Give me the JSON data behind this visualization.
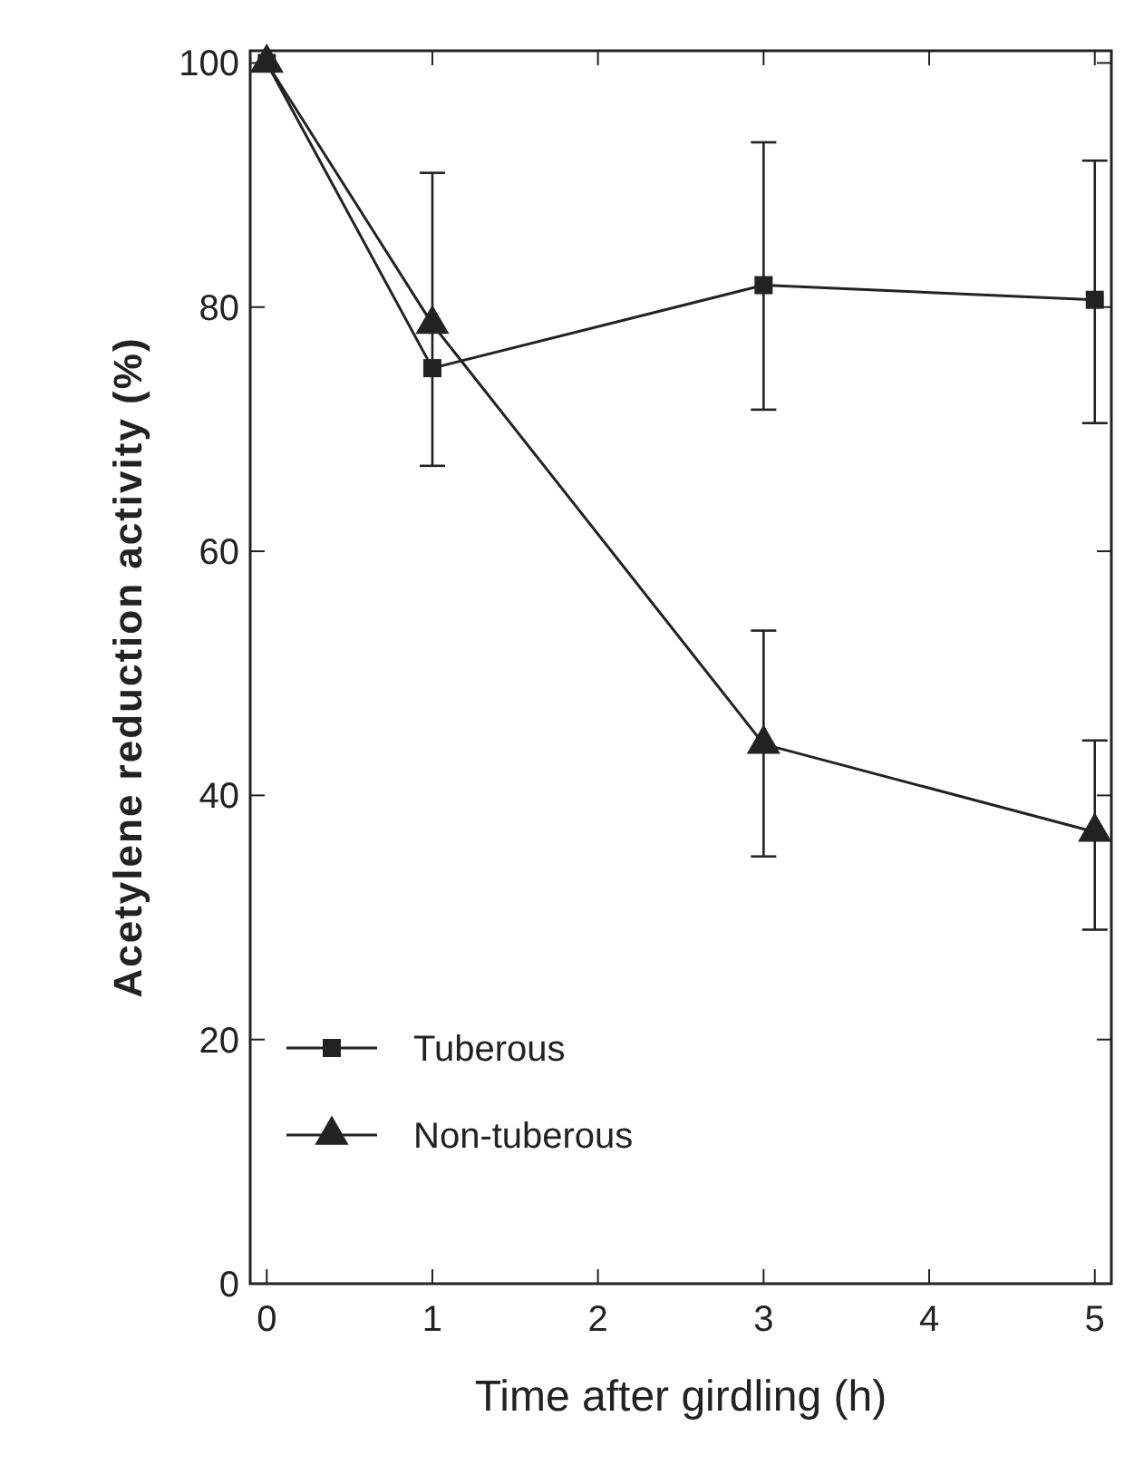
{
  "chart_data": {
    "type": "line",
    "xlabel": "Time after girdling (h)",
    "ylabel": "Acetylene reduction activity (%)",
    "x": [
      0,
      1,
      3,
      5
    ],
    "xlim": [
      -0.1,
      5.1
    ],
    "ylim": [
      0,
      101
    ],
    "xticks": [
      0,
      1,
      2,
      3,
      4,
      5
    ],
    "yticks": [
      0,
      20,
      40,
      60,
      80,
      100
    ],
    "grid": false,
    "legend": "bottom left",
    "line_style": "solid",
    "series": [
      {
        "name": "Tuberous",
        "color": "#222222",
        "marker": "square",
        "values": [
          100,
          75,
          81.8,
          80.6
        ],
        "errors": [
          null,
          [
            67,
            91
          ],
          [
            71.6,
            93.5
          ],
          [
            70.5,
            92
          ]
        ]
      },
      {
        "name": "Non-tuberous",
        "color": "#222222",
        "marker": "triangle",
        "values": [
          100,
          78.6,
          44.2,
          37
        ],
        "errors": [
          null,
          null,
          [
            35,
            53.5
          ],
          [
            29,
            44.5
          ]
        ]
      }
    ]
  }
}
